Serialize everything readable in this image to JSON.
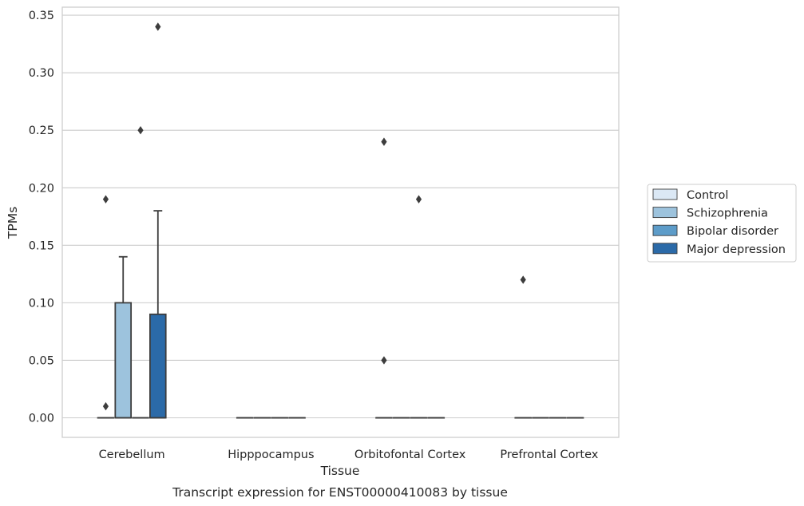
{
  "chart_data": {
    "type": "box",
    "title": "",
    "caption": "Transcript expression for ENST00000410083 by tissue",
    "xlabel": "Tissue",
    "ylabel": "TPMs",
    "ylim": [
      -0.017,
      0.357
    ],
    "yticks": [
      "0.00",
      "0.05",
      "0.10",
      "0.15",
      "0.20",
      "0.25",
      "0.30",
      "0.35"
    ],
    "ytick_values": [
      0,
      0.05,
      0.1,
      0.15,
      0.2,
      0.25,
      0.3,
      0.35
    ],
    "grid": true,
    "legend_position": "right",
    "categories": [
      "Cerebellum",
      "Hipppocampus",
      "Orbitofontal Cortex",
      "Prefrontal Cortex"
    ],
    "series": [
      {
        "name": "Control",
        "color": "#dbe8f5",
        "boxes": [
          {
            "q1": 0,
            "median": 0,
            "q3": 0,
            "whisker_low": 0,
            "whisker_high": 0,
            "outliers": [
              0.19,
              0.01
            ]
          },
          {
            "q1": 0,
            "median": 0,
            "q3": 0,
            "whisker_low": 0,
            "whisker_high": 0,
            "outliers": []
          },
          {
            "q1": 0,
            "median": 0,
            "q3": 0,
            "whisker_low": 0,
            "whisker_high": 0,
            "outliers": [
              0.24,
              0.05
            ]
          },
          {
            "q1": 0,
            "median": 0,
            "q3": 0,
            "whisker_low": 0,
            "whisker_high": 0,
            "outliers": [
              0.12
            ]
          }
        ]
      },
      {
        "name": "Schizophrenia",
        "color": "#9dc3dd",
        "boxes": [
          {
            "q1": 0,
            "median": 0,
            "q3": 0.1,
            "whisker_low": 0,
            "whisker_high": 0.14,
            "outliers": []
          },
          {
            "q1": 0,
            "median": 0,
            "q3": 0,
            "whisker_low": 0,
            "whisker_high": 0,
            "outliers": []
          },
          {
            "q1": 0,
            "median": 0,
            "q3": 0,
            "whisker_low": 0,
            "whisker_high": 0,
            "outliers": []
          },
          {
            "q1": 0,
            "median": 0,
            "q3": 0,
            "whisker_low": 0,
            "whisker_high": 0,
            "outliers": []
          }
        ]
      },
      {
        "name": "Bipolar disorder",
        "color": "#5d9cc9",
        "boxes": [
          {
            "q1": 0,
            "median": 0,
            "q3": 0,
            "whisker_low": 0,
            "whisker_high": 0,
            "outliers": [
              0.25
            ]
          },
          {
            "q1": 0,
            "median": 0,
            "q3": 0,
            "whisker_low": 0,
            "whisker_high": 0,
            "outliers": []
          },
          {
            "q1": 0,
            "median": 0,
            "q3": 0,
            "whisker_low": 0,
            "whisker_high": 0,
            "outliers": [
              0.19
            ]
          },
          {
            "q1": 0,
            "median": 0,
            "q3": 0,
            "whisker_low": 0,
            "whisker_high": 0,
            "outliers": []
          }
        ]
      },
      {
        "name": "Major depression",
        "color": "#2b6aa8",
        "boxes": [
          {
            "q1": 0,
            "median": 0,
            "q3": 0.09,
            "whisker_low": 0,
            "whisker_high": 0.18,
            "outliers": [
              0.34
            ]
          },
          {
            "q1": 0,
            "median": 0,
            "q3": 0,
            "whisker_low": 0,
            "whisker_high": 0,
            "outliers": []
          },
          {
            "q1": 0,
            "median": 0,
            "q3": 0,
            "whisker_low": 0,
            "whisker_high": 0,
            "outliers": []
          },
          {
            "q1": 0,
            "median": 0,
            "q3": 0,
            "whisker_low": 0,
            "whisker_high": 0,
            "outliers": []
          }
        ]
      }
    ]
  }
}
